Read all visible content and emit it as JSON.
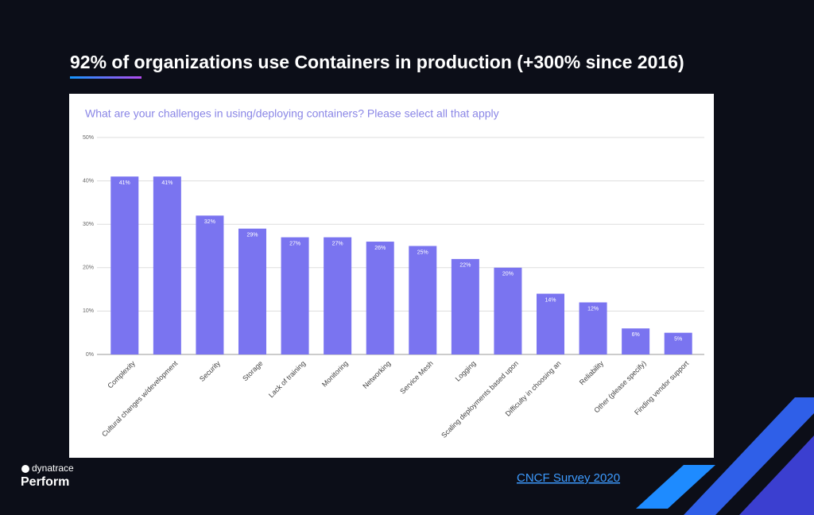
{
  "title": "92% of organizations use Containers in production (+300% since 2016)",
  "chart_data": {
    "type": "bar",
    "title": "What are your challenges in using/deploying containers? Please select all that apply",
    "categories": [
      "Complexity",
      "Cultural changes w/development",
      "Security",
      "Storage",
      "Lack of training",
      "Monitoring",
      "Networking",
      "Service Mesh",
      "Logging",
      "Scaling deployments based upon",
      "Difficulty in choosing an",
      "Reliability",
      "Other (please specify)",
      "Finding vendor support"
    ],
    "values": [
      41,
      41,
      32,
      29,
      27,
      27,
      26,
      25,
      22,
      20,
      14,
      12,
      6,
      5
    ],
    "value_labels": [
      "41%",
      "41%",
      "32%",
      "29%",
      "27%",
      "27%",
      "26%",
      "25%",
      "22%",
      "20%",
      "14%",
      "12%",
      "6%",
      "5%"
    ],
    "color": "#7a74f0",
    "ylim": [
      0,
      50
    ],
    "yticks": [
      {
        "value": 0,
        "label": "0%"
      },
      {
        "value": 10,
        "label": "10%"
      },
      {
        "value": 20,
        "label": "20%"
      },
      {
        "value": 30,
        "label": "30%"
      },
      {
        "value": 40,
        "label": "40%"
      },
      {
        "value": 50,
        "label": "50%"
      }
    ],
    "grid": true
  },
  "footer": {
    "brand": "dynatrace",
    "event": "Perform",
    "source": "CNCF Survey 2020"
  }
}
